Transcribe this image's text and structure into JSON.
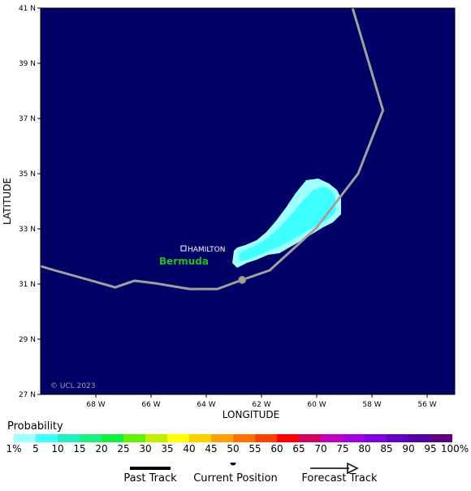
{
  "map": {
    "lat_labels": [
      "41 N",
      "39 N",
      "37 N",
      "35 N",
      "33 N",
      "31 N",
      "29 N",
      "27 N"
    ],
    "lon_labels": [
      "68 W",
      "66 W",
      "64 W",
      "62 W",
      "60 W",
      "58 W",
      "56 W"
    ],
    "xlabel": "LONGITUDE",
    "ylabel": "LATITUDE",
    "lon_range": [
      -70,
      -55
    ],
    "lat_range": [
      27,
      41
    ],
    "ocean_color": "#000066",
    "place_city": "HAMILTON",
    "place_region": "Bermuda",
    "copyright": "© UCL 2023",
    "track_color": "#a0a0a0",
    "track": [
      [
        -70.0,
        31.65
      ],
      [
        -69.5,
        31.5
      ],
      [
        -68.0,
        31.08
      ],
      [
        -67.3,
        30.88
      ],
      [
        -66.6,
        31.12
      ],
      [
        -65.8,
        31.02
      ],
      [
        -64.6,
        30.82
      ],
      [
        -63.6,
        30.82
      ],
      [
        -62.7,
        31.15
      ],
      [
        -61.7,
        31.5
      ],
      [
        -60.0,
        33.05
      ],
      [
        -58.5,
        35.0
      ],
      [
        -57.6,
        37.3
      ],
      [
        -58.7,
        41.0
      ]
    ],
    "current_position": [
      -62.7,
      31.15
    ]
  },
  "legend": {
    "title": "Probability",
    "labels": [
      "1%",
      "5",
      "10",
      "15",
      "20",
      "25",
      "30",
      "35",
      "40",
      "45",
      "50",
      "55",
      "60",
      "65",
      "70",
      "75",
      "80",
      "85",
      "90",
      "95",
      "100%"
    ],
    "colors": [
      "#a0ffff",
      "#40ffff",
      "#20f0c0",
      "#20f080",
      "#10f040",
      "#60f000",
      "#c0f000",
      "#ffff00",
      "#ffd000",
      "#ffa000",
      "#ff7000",
      "#ff4000",
      "#ff0000",
      "#d00060",
      "#c000c0",
      "#a000e0",
      "#8000e0",
      "#6000c0",
      "#5000a0",
      "#600080"
    ],
    "key_past": "Past Track",
    "key_current": "Current Position",
    "key_forecast": "Forecast Track"
  }
}
